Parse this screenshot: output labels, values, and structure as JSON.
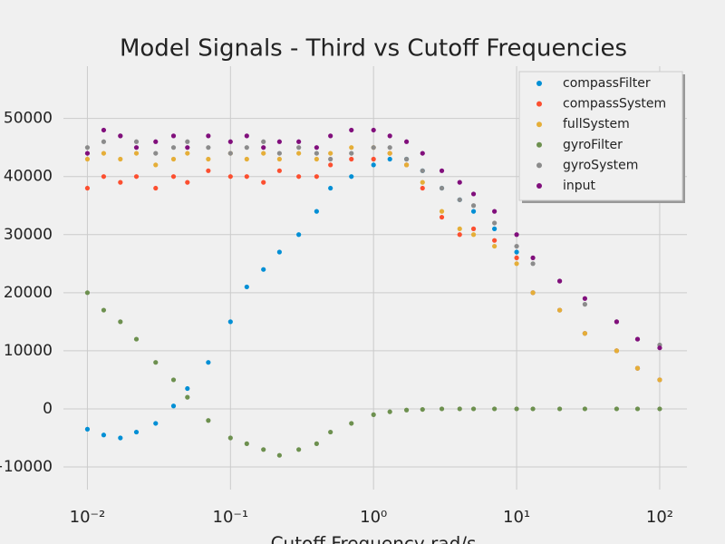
{
  "chart_data": {
    "type": "scatter",
    "title": "Model Signals - Third vs Cutoff Frequencies",
    "x_label": "Cutoff Frequency rad/s",
    "xscale": "log",
    "grid": true,
    "legend_loc": "upper right",
    "xlim": [
      0.0068,
      155
    ],
    "ylim": [
      -13900,
      59000
    ],
    "xticks": [
      {
        "value": 0.01,
        "label": "10⁻²"
      },
      {
        "value": 0.1,
        "label": "10⁻¹"
      },
      {
        "value": 1,
        "label": "10⁰"
      },
      {
        "value": 10,
        "label": "10¹"
      },
      {
        "value": 100,
        "label": "10²"
      }
    ],
    "yticks": [
      {
        "value": -10000,
        "label": "−10000"
      },
      0,
      10000,
      20000,
      30000,
      40000,
      50000
    ],
    "x": [
      0.01,
      0.013,
      0.017,
      0.022,
      0.03,
      0.04,
      0.05,
      0.07,
      0.1,
      0.13,
      0.17,
      0.22,
      0.3,
      0.4,
      0.5,
      0.7,
      1,
      1.3,
      1.7,
      2.2,
      3,
      4,
      5,
      7,
      10,
      13,
      20,
      30,
      50,
      70,
      100
    ],
    "series": [
      {
        "name": "compassFilter",
        "color": "#008fd5",
        "values": [
          -3500,
          -4500,
          -5000,
          -4000,
          -2500,
          500,
          3500,
          8000,
          15000,
          21000,
          24000,
          27000,
          30000,
          34000,
          38000,
          40000,
          42000,
          43000,
          43000,
          41000,
          38000,
          36000,
          34000,
          31000,
          27000,
          20000,
          17000,
          13000,
          10000,
          7000,
          5000
        ]
      },
      {
        "name": "compassSystem",
        "color": "#fc4f30",
        "values": [
          38000,
          40000,
          39000,
          40000,
          38000,
          40000,
          39000,
          41000,
          40000,
          40000,
          39000,
          41000,
          40000,
          40000,
          42000,
          43000,
          43000,
          44000,
          42000,
          38000,
          33000,
          30000,
          31000,
          29000,
          26000,
          20000,
          17000,
          13000,
          10000,
          7000,
          5000
        ]
      },
      {
        "name": "fullSystem",
        "color": "#e5ae38",
        "values": [
          43000,
          44000,
          43000,
          44000,
          42000,
          43000,
          44000,
          43000,
          44000,
          43000,
          44000,
          43000,
          44000,
          43000,
          44000,
          45000,
          45000,
          44000,
          42000,
          39000,
          34000,
          31000,
          30000,
          28000,
          25000,
          20000,
          17000,
          13000,
          10000,
          7000,
          5000
        ]
      },
      {
        "name": "gyroFilter",
        "color": "#6d904f",
        "values": [
          20000,
          17000,
          15000,
          12000,
          8000,
          5000,
          2000,
          -2000,
          -5000,
          -6000,
          -7000,
          -8000,
          -7000,
          -6000,
          -4000,
          -2500,
          -1000,
          -500,
          -200,
          -100,
          0,
          0,
          0,
          0,
          0,
          0,
          0,
          0,
          0,
          0,
          0
        ]
      },
      {
        "name": "gyroSystem",
        "color": "#8b8b8b",
        "values": [
          45000,
          46000,
          47000,
          46000,
          44000,
          45000,
          46000,
          45000,
          44000,
          45000,
          46000,
          44000,
          45000,
          44000,
          43000,
          44000,
          45000,
          45000,
          43000,
          41000,
          38000,
          36000,
          35000,
          32000,
          28000,
          25000,
          22000,
          18000,
          15000,
          12000,
          11000
        ]
      },
      {
        "name": "input",
        "color": "#810f7c",
        "values": [
          44000,
          48000,
          47000,
          45000,
          46000,
          47000,
          45000,
          47000,
          46000,
          47000,
          45000,
          46000,
          46000,
          45000,
          47000,
          48000,
          48000,
          47000,
          46000,
          44000,
          41000,
          39000,
          37000,
          34000,
          30000,
          26000,
          22000,
          19000,
          15000,
          12000,
          10500
        ]
      }
    ]
  }
}
